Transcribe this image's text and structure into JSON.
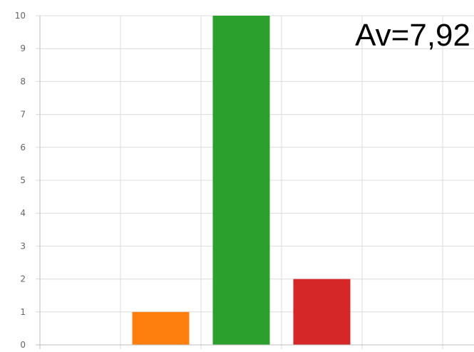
{
  "chart_data": {
    "type": "bar",
    "categories": [
      "",
      "",
      "",
      "",
      "",
      ""
    ],
    "values": [
      0,
      1,
      10,
      2,
      0,
      0
    ],
    "colors": [
      "#ff7f0e",
      "#ff7f0e",
      "#2ca02c",
      "#d62728",
      "#d62728",
      "#d62728"
    ],
    "title": "",
    "xlabel": "",
    "ylabel": "",
    "ylim": [
      0,
      10
    ],
    "yticks": [
      "0",
      "1",
      "2",
      "3",
      "4",
      "5",
      "6",
      "7",
      "8",
      "9",
      "10"
    ],
    "grid": true,
    "annotation": "Av=7,92"
  }
}
